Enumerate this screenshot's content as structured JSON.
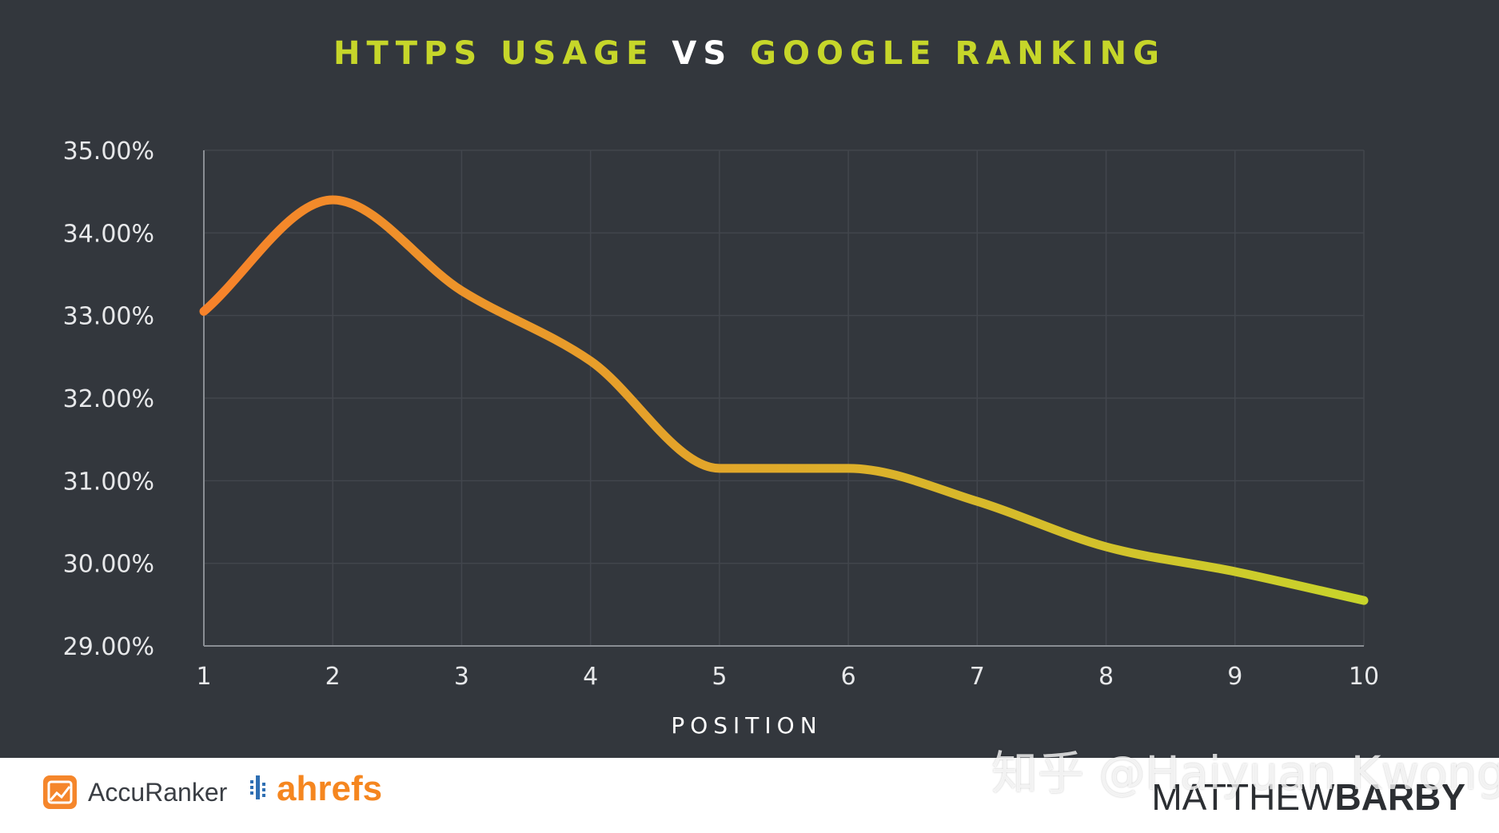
{
  "title": {
    "part1": "HTTPS USAGE",
    "part2": "VS",
    "part3": "GOOGLE RANKING"
  },
  "colors": {
    "background": "#33373d",
    "title_accent": "#c6d62a",
    "line_start": "#f7822a",
    "line_end": "#c8d42b",
    "grid": "#42464d"
  },
  "chart_data": {
    "type": "line",
    "title": "HTTPS USAGE VS GOOGLE RANKING",
    "xlabel": "POSITION",
    "ylabel": "",
    "x": [
      1,
      2,
      3,
      4,
      5,
      6,
      7,
      8,
      9,
      10
    ],
    "x_tick_labels": [
      "1",
      "2",
      "3",
      "4",
      "5",
      "6",
      "7",
      "8",
      "9",
      "10"
    ],
    "y_tick_labels": [
      "35.00%",
      "34.00%",
      "33.00%",
      "32.00%",
      "31.00%",
      "30.00%",
      "29.00%"
    ],
    "ylim": [
      29,
      35
    ],
    "series": [
      {
        "values": [
          33.05,
          34.4,
          33.3,
          32.45,
          31.15,
          31.15,
          30.75,
          30.2,
          29.9,
          29.55
        ]
      }
    ],
    "grid": true,
    "legend": "none"
  },
  "footer": {
    "accuranker_label": "AccuRanker",
    "ahrefs_label": "ahrefs",
    "brand_light": "MATTHEW",
    "brand_bold": "BARBY"
  },
  "watermark": "知乎 @Haiyuan Kwong"
}
